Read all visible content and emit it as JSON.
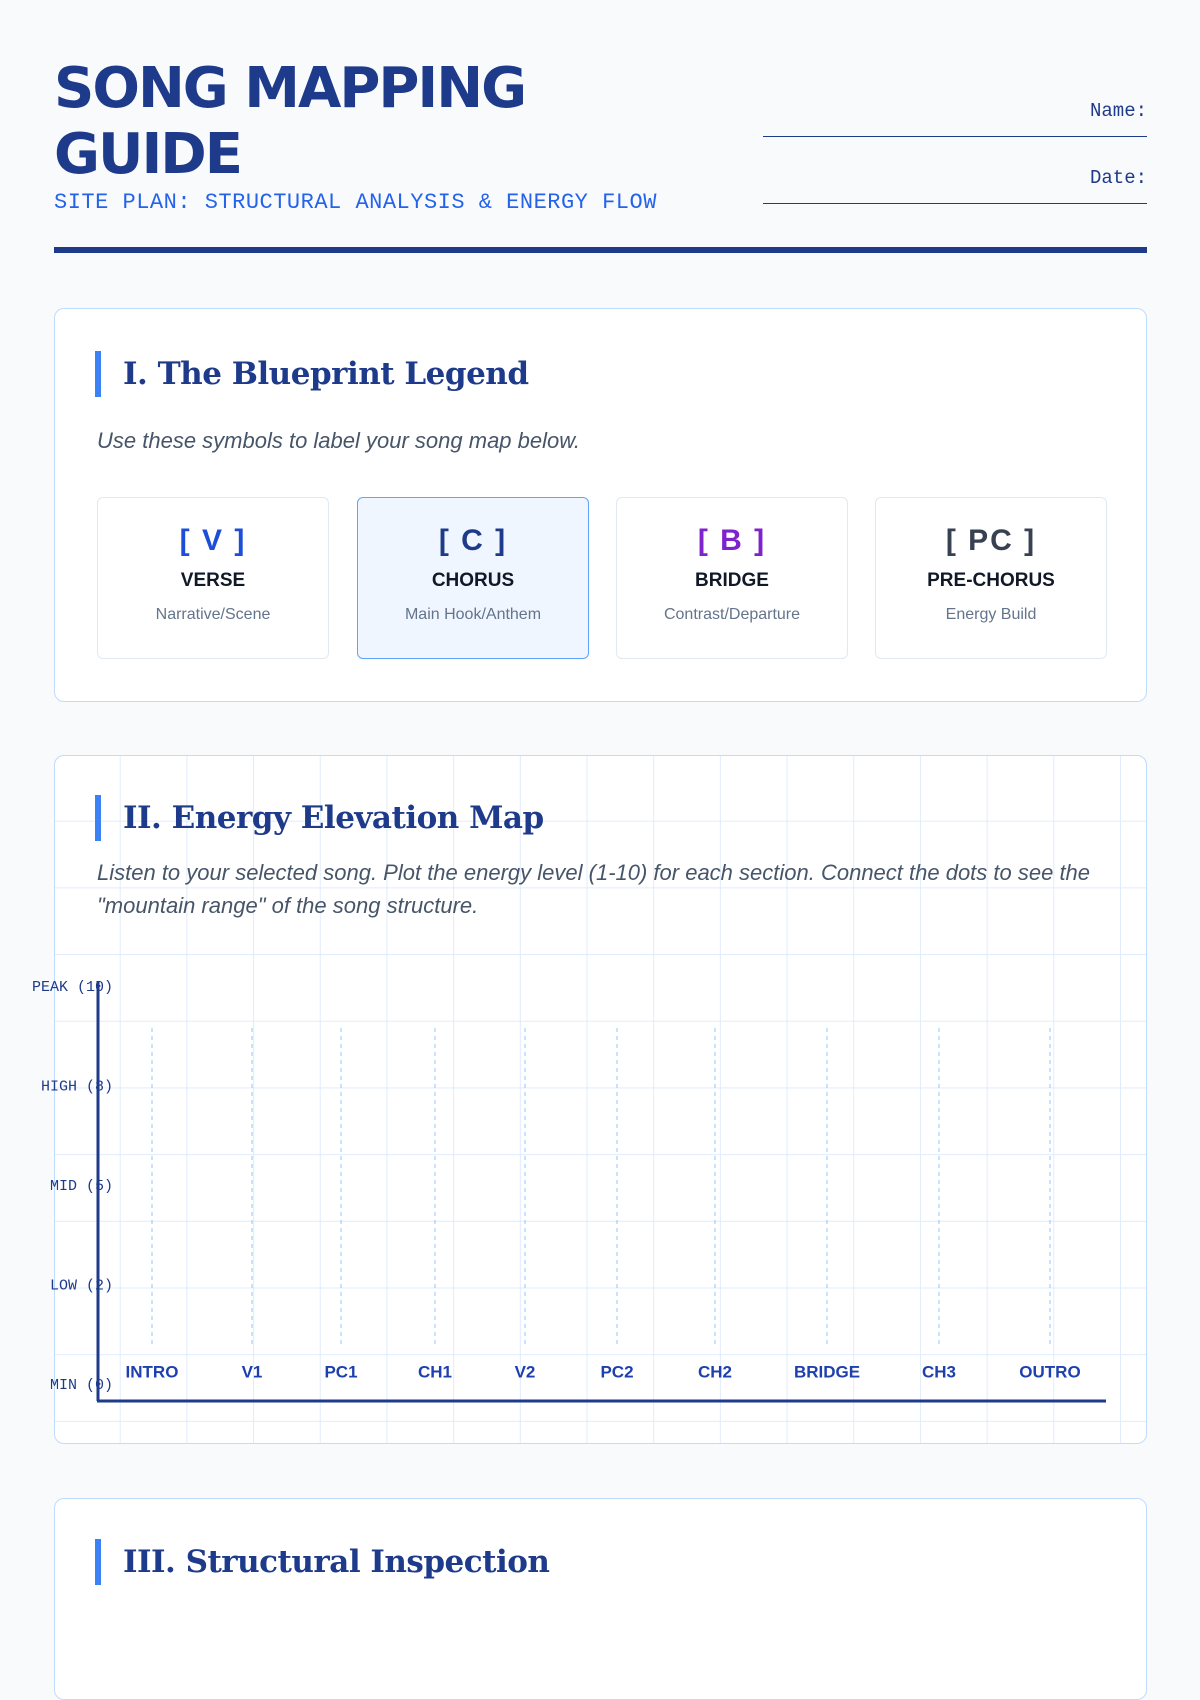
{
  "header": {
    "title": "SONG MAPPING GUIDE",
    "subtitle": "SITE PLAN: STRUCTURAL ANALYSIS & ENERGY FLOW",
    "fields": [
      "Name:",
      "Date:"
    ]
  },
  "legend": {
    "title": "I. The Blueprint Legend",
    "instructions": "Use these symbols to label your song map below.",
    "items": [
      {
        "symbol": "[ V ]",
        "name": "VERSE",
        "description": "Narrative/Scene"
      },
      {
        "symbol": "[ C ]",
        "name": "CHORUS",
        "description": "Main Hook/Anthem"
      },
      {
        "symbol": "[ B ]",
        "name": "BRIDGE",
        "description": "Contrast/Departure"
      },
      {
        "symbol": "[ PC ]",
        "name": "PRE-CHORUS",
        "description": "Energy Build"
      }
    ]
  },
  "energy_map": {
    "title": "II. Energy Elevation Map",
    "instructions": "Listen to your selected song. Plot the energy level (1-10) for each section. Connect the dots to see the \"mountain range\" of the song structure.",
    "levels": [
      "PEAK (10)",
      "HIGH (8)",
      "MID (5)",
      "LOW (2)",
      "MIN (0)"
    ],
    "sections": [
      "INTRO",
      "V1",
      "PC1",
      "CH1",
      "V2",
      "PC2",
      "CH2",
      "BRIDGE",
      "CH3",
      "OUTRO"
    ]
  },
  "inspection": {
    "title": "III. Structural Inspection"
  }
}
